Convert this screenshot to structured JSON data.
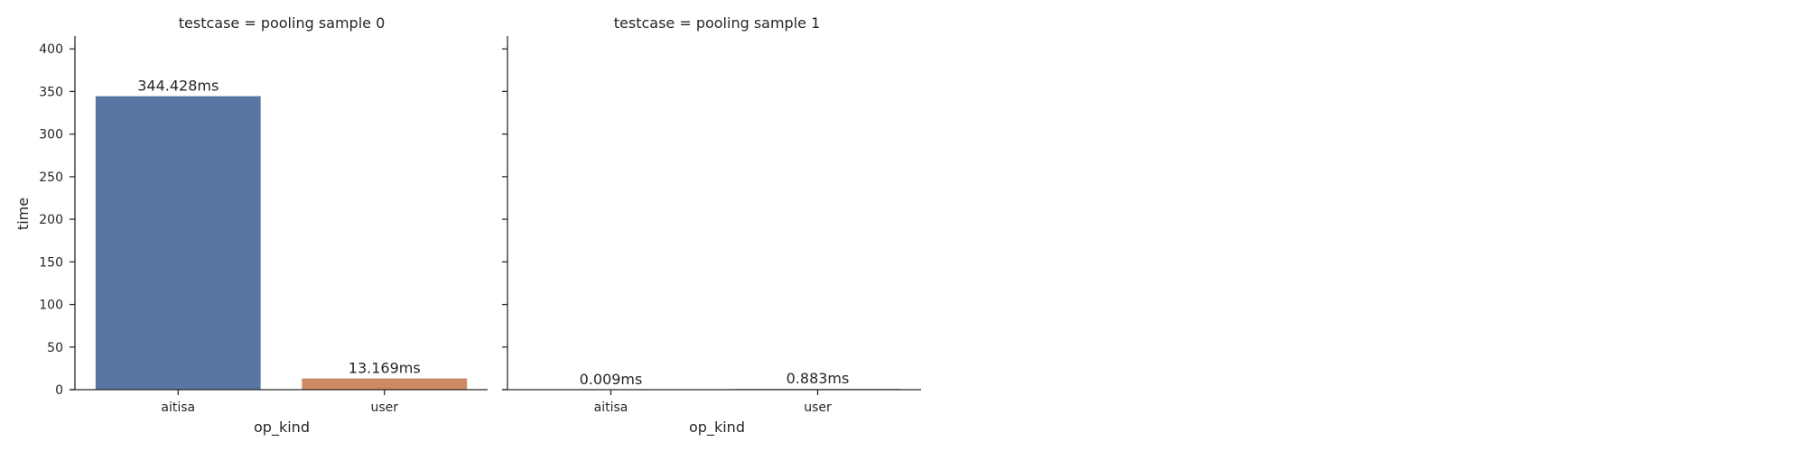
{
  "chart_data": {
    "type": "bar",
    "ylabel": "time",
    "ylim": [
      0,
      415
    ],
    "yticks": [
      0,
      50,
      100,
      150,
      200,
      250,
      300,
      350,
      400
    ],
    "categories": [
      "aitisa",
      "user"
    ],
    "colors": {
      "aitisa": "#5975a4",
      "user": "#cc8963"
    },
    "panels": [
      {
        "title": "testcase = pooling sample 0",
        "xlabel": "op_kind",
        "values": [
          344.428,
          13.169
        ],
        "labels": [
          "344.428ms",
          "13.169ms"
        ]
      },
      {
        "title": "testcase = pooling sample 1",
        "xlabel": "op_kind",
        "values": [
          0.009,
          0.883
        ],
        "labels": [
          "0.009ms",
          "0.883ms"
        ]
      }
    ]
  }
}
